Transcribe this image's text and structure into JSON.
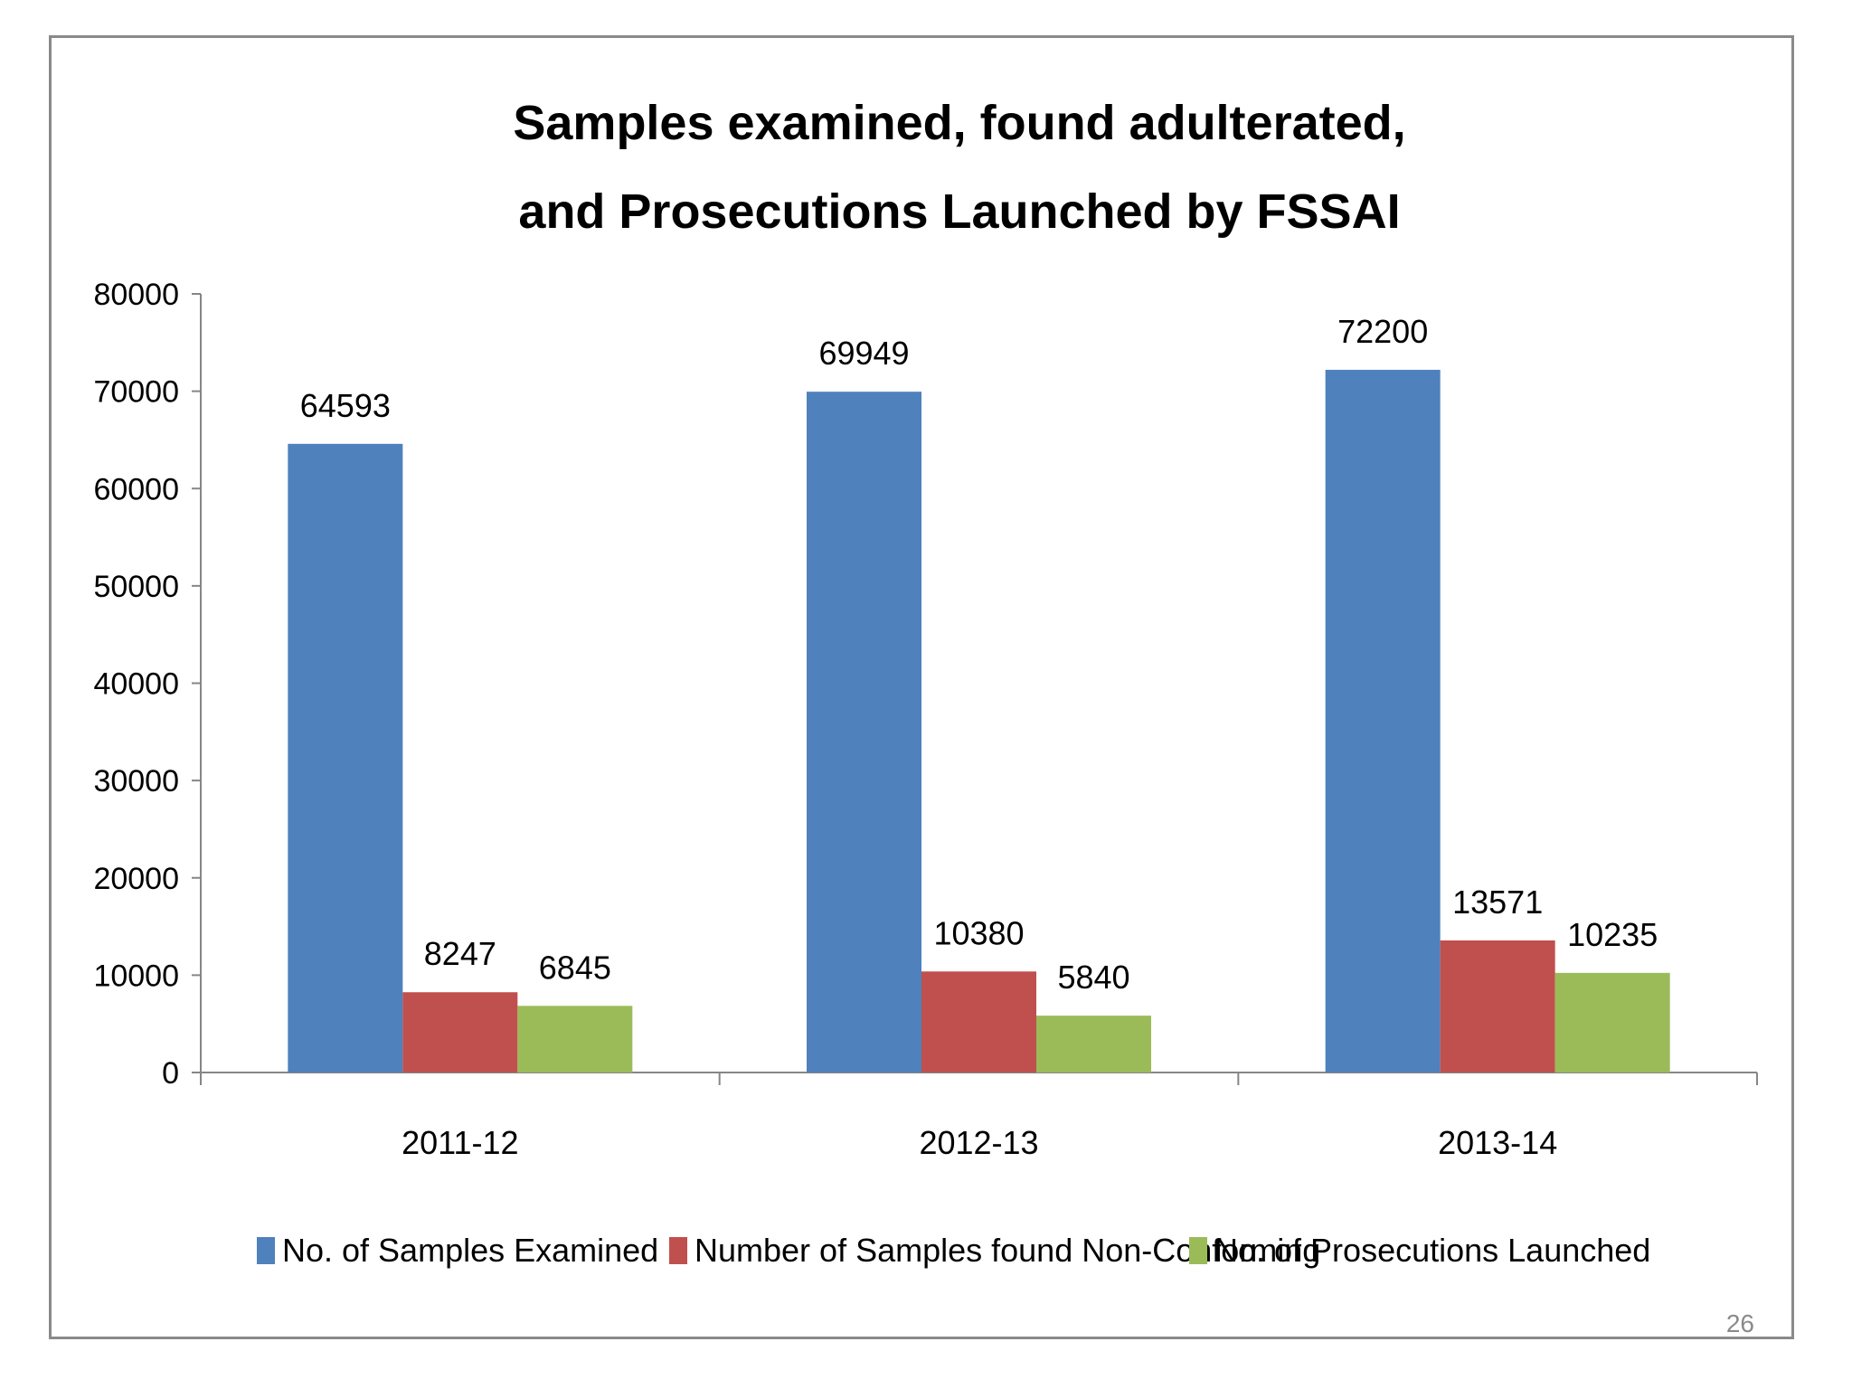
{
  "page_number": "26",
  "colors": {
    "series": [
      "#4F81BD",
      "#C0504D",
      "#9BBB59"
    ],
    "axis": "#868686"
  },
  "chart_data": {
    "type": "bar",
    "title_lines": [
      "Samples examined, found adulterated,",
      "and Prosecutions Launched by FSSAI"
    ],
    "categories": [
      "2011-12",
      "2012-13",
      "2013-14"
    ],
    "series": [
      {
        "name": "No. of Samples Examined",
        "values": [
          64593,
          69949,
          72200
        ]
      },
      {
        "name": "Number of Samples found Non-Conforming",
        "values": [
          8247,
          10380,
          13571
        ]
      },
      {
        "name": "No. of Prosecutions Launched",
        "values": [
          6845,
          5840,
          10235
        ]
      }
    ],
    "ylim": [
      0,
      80000
    ],
    "yticks": [
      0,
      10000,
      20000,
      30000,
      40000,
      50000,
      60000,
      70000,
      80000
    ],
    "xlabel": "",
    "ylabel": "",
    "legend_position": "bottom",
    "grid": false
  }
}
